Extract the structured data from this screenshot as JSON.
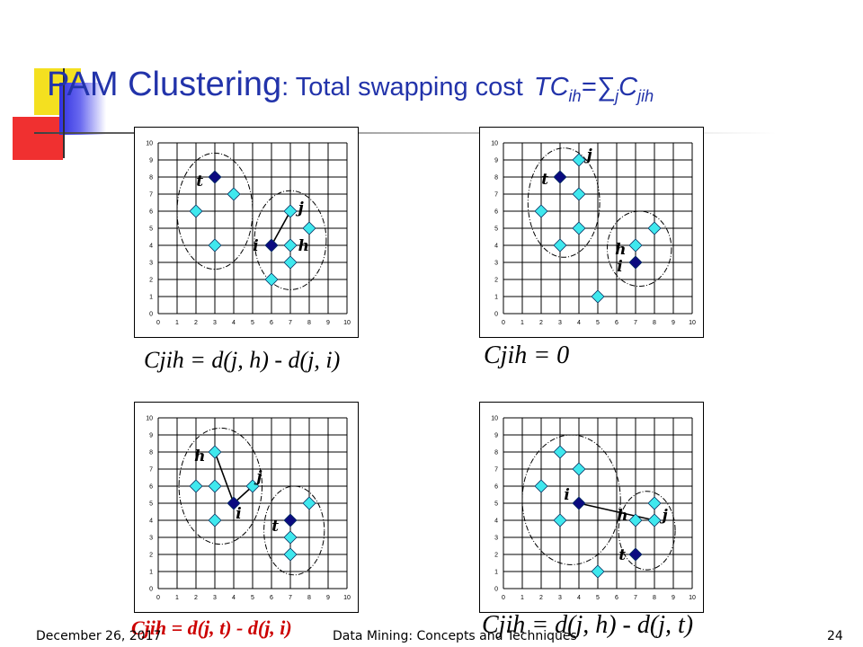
{
  "title": {
    "main": "PAM Clustering",
    "sub": ": Total swapping cost",
    "formula_tc": "TC",
    "formula_tc_sub": "ih",
    "formula_eq": "=",
    "formula_sigma": "∑",
    "formula_sigma_sub": "j",
    "formula_c": "C",
    "formula_c_sub": "jih"
  },
  "chart_data": [
    {
      "type": "scatter",
      "id": "top-left",
      "xlim": [
        0,
        10
      ],
      "ylim": [
        0,
        10
      ],
      "x_ticks": [
        "0",
        "1",
        "2",
        "3",
        "4",
        "5",
        "6",
        "7",
        "8",
        "9",
        "10"
      ],
      "y_ticks": [
        "0",
        "1",
        "2",
        "3",
        "4",
        "5",
        "6",
        "7",
        "8",
        "9",
        "10"
      ],
      "points": [
        {
          "x": 3,
          "y": 8,
          "kind": "medoid"
        },
        {
          "x": 6,
          "y": 4,
          "kind": "medoid"
        },
        {
          "x": 2,
          "y": 6,
          "kind": "object"
        },
        {
          "x": 4,
          "y": 7,
          "kind": "object"
        },
        {
          "x": 3,
          "y": 4,
          "kind": "object"
        },
        {
          "x": 7,
          "y": 6,
          "kind": "object"
        },
        {
          "x": 8,
          "y": 5,
          "kind": "object"
        },
        {
          "x": 7,
          "y": 4,
          "kind": "object"
        },
        {
          "x": 7,
          "y": 3,
          "kind": "object"
        },
        {
          "x": 6,
          "y": 2,
          "kind": "object"
        }
      ],
      "segments": [
        [
          [
            6,
            4
          ],
          [
            7,
            6
          ]
        ]
      ],
      "ellipses": [
        {
          "cx": 3,
          "cy": 6,
          "rx": 2,
          "ry": 3.4
        },
        {
          "cx": 7,
          "cy": 4.3,
          "rx": 1.9,
          "ry": 2.9
        }
      ],
      "labels": [
        {
          "text": "t",
          "x": 2.2,
          "y": 7.7
        },
        {
          "text": "j",
          "x": 7.6,
          "y": 6.1
        },
        {
          "text": "i",
          "x": 5.2,
          "y": 3.9
        },
        {
          "text": "h",
          "x": 7.6,
          "y": 3.9
        }
      ]
    },
    {
      "type": "scatter",
      "id": "top-right",
      "xlim": [
        0,
        10
      ],
      "ylim": [
        0,
        10
      ],
      "x_ticks": [
        "0",
        "1",
        "2",
        "3",
        "4",
        "5",
        "6",
        "7",
        "8",
        "9",
        "10"
      ],
      "y_ticks": [
        "0",
        "1",
        "2",
        "3",
        "4",
        "5",
        "6",
        "7",
        "8",
        "9",
        "10"
      ],
      "points": [
        {
          "x": 3,
          "y": 8,
          "kind": "medoid"
        },
        {
          "x": 7,
          "y": 3,
          "kind": "medoid"
        },
        {
          "x": 4,
          "y": 9,
          "kind": "object"
        },
        {
          "x": 2,
          "y": 6,
          "kind": "object"
        },
        {
          "x": 4,
          "y": 7,
          "kind": "object"
        },
        {
          "x": 4,
          "y": 5,
          "kind": "object"
        },
        {
          "x": 3,
          "y": 4,
          "kind": "object"
        },
        {
          "x": 7,
          "y": 4,
          "kind": "object"
        },
        {
          "x": 8,
          "y": 5,
          "kind": "object"
        },
        {
          "x": 5,
          "y": 1,
          "kind": "object"
        }
      ],
      "segments": [],
      "ellipses": [
        {
          "cx": 3.2,
          "cy": 6.5,
          "rx": 1.9,
          "ry": 3.2
        },
        {
          "cx": 7.2,
          "cy": 3.8,
          "rx": 1.7,
          "ry": 2.2
        }
      ],
      "labels": [
        {
          "text": "t",
          "x": 2.2,
          "y": 7.8
        },
        {
          "text": "j",
          "x": 4.6,
          "y": 9.2
        },
        {
          "text": "h",
          "x": 6.1,
          "y": 3.7
        },
        {
          "text": "i",
          "x": 6.2,
          "y": 2.7
        }
      ]
    },
    {
      "type": "scatter",
      "id": "bottom-left",
      "xlim": [
        0,
        10
      ],
      "ylim": [
        0,
        10
      ],
      "x_ticks": [
        "0",
        "1",
        "2",
        "3",
        "4",
        "5",
        "6",
        "7",
        "8",
        "9",
        "10"
      ],
      "y_ticks": [
        "0",
        "1",
        "2",
        "3",
        "4",
        "5",
        "6",
        "7",
        "8",
        "9",
        "10"
      ],
      "points": [
        {
          "x": 4,
          "y": 5,
          "kind": "medoid"
        },
        {
          "x": 7,
          "y": 4,
          "kind": "medoid"
        },
        {
          "x": 3,
          "y": 8,
          "kind": "object"
        },
        {
          "x": 2,
          "y": 6,
          "kind": "object"
        },
        {
          "x": 3,
          "y": 6,
          "kind": "object"
        },
        {
          "x": 5,
          "y": 6,
          "kind": "object"
        },
        {
          "x": 3,
          "y": 4,
          "kind": "object"
        },
        {
          "x": 8,
          "y": 5,
          "kind": "object"
        },
        {
          "x": 7,
          "y": 3,
          "kind": "object"
        },
        {
          "x": 7,
          "y": 2,
          "kind": "object"
        }
      ],
      "segments": [
        [
          [
            3,
            8
          ],
          [
            4,
            5
          ]
        ],
        [
          [
            4,
            5
          ],
          [
            5,
            6
          ]
        ]
      ],
      "ellipses": [
        {
          "cx": 3.3,
          "cy": 6,
          "rx": 2.2,
          "ry": 3.4
        },
        {
          "cx": 7.2,
          "cy": 3.4,
          "rx": 1.6,
          "ry": 2.6
        }
      ],
      "labels": [
        {
          "text": "h",
          "x": 2.1,
          "y": 7.7
        },
        {
          "text": "j",
          "x": 5.4,
          "y": 6.5
        },
        {
          "text": "i",
          "x": 4.3,
          "y": 4.3
        },
        {
          "text": "t",
          "x": 6.2,
          "y": 3.6
        }
      ]
    },
    {
      "type": "scatter",
      "id": "bottom-right",
      "xlim": [
        0,
        10
      ],
      "ylim": [
        0,
        10
      ],
      "x_ticks": [
        "0",
        "1",
        "2",
        "3",
        "4",
        "5",
        "6",
        "7",
        "8",
        "9",
        "10"
      ],
      "y_ticks": [
        "0",
        "1",
        "2",
        "3",
        "4",
        "5",
        "6",
        "7",
        "8",
        "9",
        "10"
      ],
      "points": [
        {
          "x": 4,
          "y": 5,
          "kind": "medoid"
        },
        {
          "x": 7,
          "y": 2,
          "kind": "medoid"
        },
        {
          "x": 3,
          "y": 8,
          "kind": "object"
        },
        {
          "x": 4,
          "y": 7,
          "kind": "object"
        },
        {
          "x": 2,
          "y": 6,
          "kind": "object"
        },
        {
          "x": 3,
          "y": 4,
          "kind": "object"
        },
        {
          "x": 8,
          "y": 5,
          "kind": "object"
        },
        {
          "x": 7,
          "y": 4,
          "kind": "object"
        },
        {
          "x": 8,
          "y": 4,
          "kind": "object"
        },
        {
          "x": 5,
          "y": 1,
          "kind": "object"
        }
      ],
      "segments": [
        [
          [
            4,
            5
          ],
          [
            8,
            4
          ]
        ]
      ],
      "ellipses": [
        {
          "cx": 3.6,
          "cy": 5.2,
          "rx": 2.6,
          "ry": 3.8
        },
        {
          "cx": 7.6,
          "cy": 3.4,
          "rx": 1.5,
          "ry": 2.3
        }
      ],
      "labels": [
        {
          "text": "i",
          "x": 3.4,
          "y": 5.4
        },
        {
          "text": "h",
          "x": 6.2,
          "y": 4.2
        },
        {
          "text": "j",
          "x": 8.6,
          "y": 4.2
        },
        {
          "text": "t",
          "x": 6.3,
          "y": 1.9
        }
      ]
    }
  ],
  "formulas": {
    "top_left": "Cjih = d(j, h) - d(j, i)",
    "top_right": "Cjih = 0",
    "bottom_left": "Cjih = d(j, t) - d(j, i)",
    "bottom_right": "Cjih = d(j, h) - d(j, t)"
  },
  "footer": {
    "date": "December 26, 2017",
    "course": "Data Mining: Concepts and Techniques",
    "page": "24"
  },
  "colors": {
    "medoid": "#0b0b80",
    "object": "#3fe8ee",
    "title": "#2233aa",
    "formula_highlight": "#cc0000"
  }
}
